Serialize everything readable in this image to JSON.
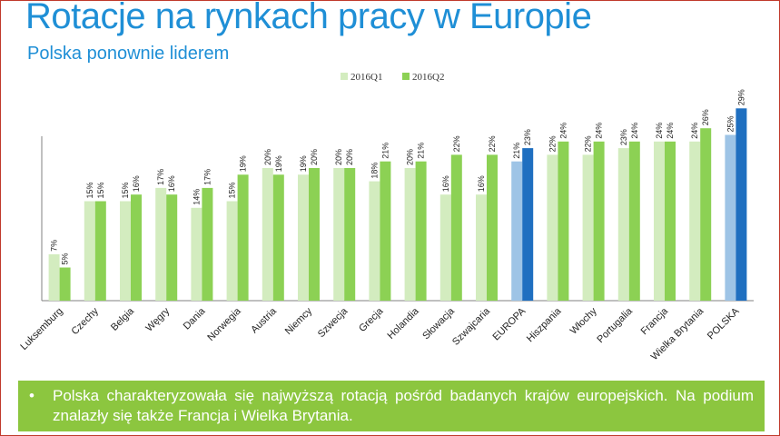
{
  "header": {
    "title": "Rotacje na rynkach pracy w Europie",
    "subtitle": "Polska ponownie liderem"
  },
  "chart_data": {
    "type": "bar",
    "categories": [
      "Luksemburg",
      "Czechy",
      "Belgia",
      "Węgry",
      "Dania",
      "Norwegia",
      "Austria",
      "Niemcy",
      "Szwecja",
      "Grecja",
      "Holandia",
      "Słowacja",
      "Szwajcaria",
      "EUROPA",
      "Hiszpania",
      "Włochy",
      "Portugalia",
      "Francja",
      "Wielka Brytania",
      "POLSKA"
    ],
    "series": [
      {
        "name": "2016Q1",
        "values": [
          7,
          15,
          15,
          17,
          14,
          15,
          20,
          19,
          20,
          18,
          20,
          16,
          16,
          21,
          22,
          22,
          23,
          24,
          24,
          25
        ]
      },
      {
        "name": "2016Q2",
        "values": [
          5,
          15,
          16,
          16,
          17,
          19,
          19,
          20,
          20,
          21,
          21,
          22,
          22,
          23,
          24,
          24,
          24,
          24,
          26,
          29
        ]
      }
    ],
    "data_labels": {
      "2016Q1": [
        "7%",
        "15%",
        "15%",
        "17%",
        "14%",
        "15%",
        "20%",
        "19%",
        "20%",
        "18%",
        "20%",
        "16%",
        "16%",
        "21%",
        "22%",
        "22%",
        "23%",
        "24%",
        "24%",
        "25%"
      ],
      "2016Q2": [
        "5%",
        "15%",
        "16%",
        "16%",
        "17%",
        "19%",
        "19%",
        "20%",
        "20%",
        "21%",
        "21%",
        "22%",
        "22%",
        "23%",
        "24%",
        "24%",
        "24%",
        "24%",
        "26%",
        "29%"
      ]
    },
    "ylim": [
      0,
      30
    ],
    "legend_position": "top-left",
    "grid": false,
    "colors": {
      "q1": "#d3ecbf",
      "q2": "#8cd154",
      "q1_highlight": "#9ec4e6",
      "q2_highlight": "#1f6fc0"
    },
    "highlight_categories": [
      "EUROPA",
      "POLSKA"
    ]
  },
  "note": {
    "bullet": "•",
    "text": "Polska charakteryzowała się najwyższą rotacją pośród badanych krajów europejskich. Na podium znalazły się także Francja i Wielka Brytania."
  }
}
